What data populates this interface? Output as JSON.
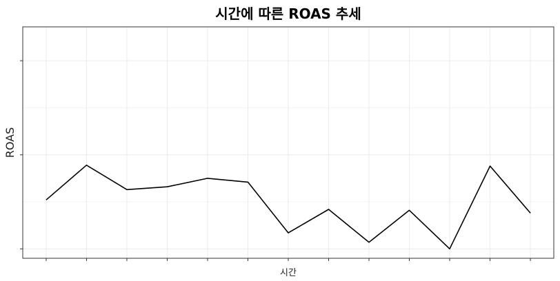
{
  "chart_data": {
    "type": "line",
    "title": "시간에 따른 ROAS 추세",
    "xlabel": "시간",
    "ylabel": "ROAS",
    "x": [
      1,
      2,
      3,
      4,
      5,
      6,
      7,
      8,
      9,
      10,
      11,
      12,
      13
    ],
    "series": [
      {
        "values": [
          0.52,
          0.89,
          0.63,
          0.66,
          0.75,
          0.71,
          0.17,
          0.42,
          0.07,
          0.41,
          0.0,
          0.88,
          0.38
        ]
      }
    ],
    "ylim": [
      -0.1,
      2.36
    ],
    "xlim": [
      0.42,
      13.58
    ],
    "y_ticks": [
      0,
      1,
      2
    ],
    "tick_labels_visible": false,
    "grid": true,
    "line_color": "#000000",
    "grid_color": "#ebebeb"
  }
}
